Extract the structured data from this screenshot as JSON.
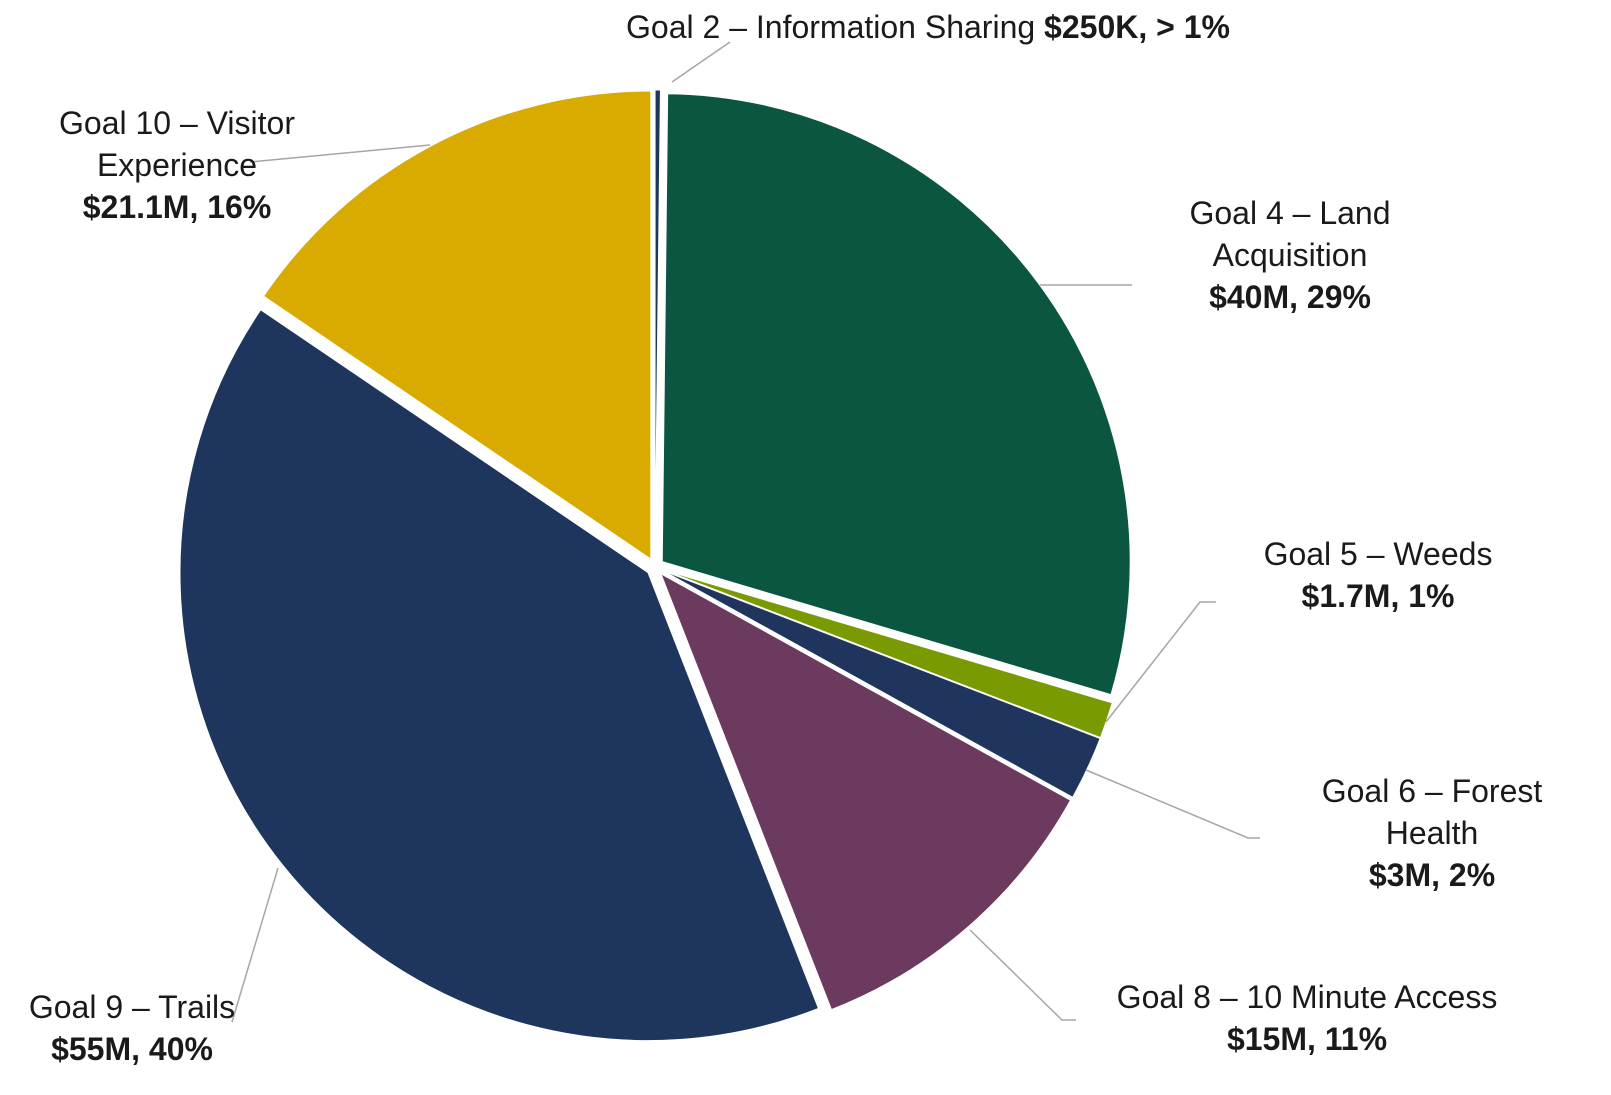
{
  "chart_data": {
    "type": "pie",
    "categories": [
      "Goal 2 – Information Sharing",
      "Goal 4 – Land Acquisition",
      "Goal 5 – Weeds",
      "Goal 6 – Forest Health",
      "Goal 8 – 10 Minute Access",
      "Goal 9 – Trails",
      "Goal 10 – Visitor Experience"
    ],
    "values": [
      250000,
      40000000,
      1700000,
      3000000,
      15000000,
      55000000,
      21100000
    ],
    "value_labels": [
      "$250K, > 1%",
      "$40M, 29%",
      "$1.7M, 1%",
      "$3M, 2%",
      "$15M, 11%",
      "$55M, 40%",
      "$21.1M, 16%"
    ],
    "colors": [
      "#1f355e",
      "#0b5640",
      "#7a9a01",
      "#1f355e",
      "#6b3a5e",
      "#1e355e",
      "#d9ab00"
    ]
  }
}
